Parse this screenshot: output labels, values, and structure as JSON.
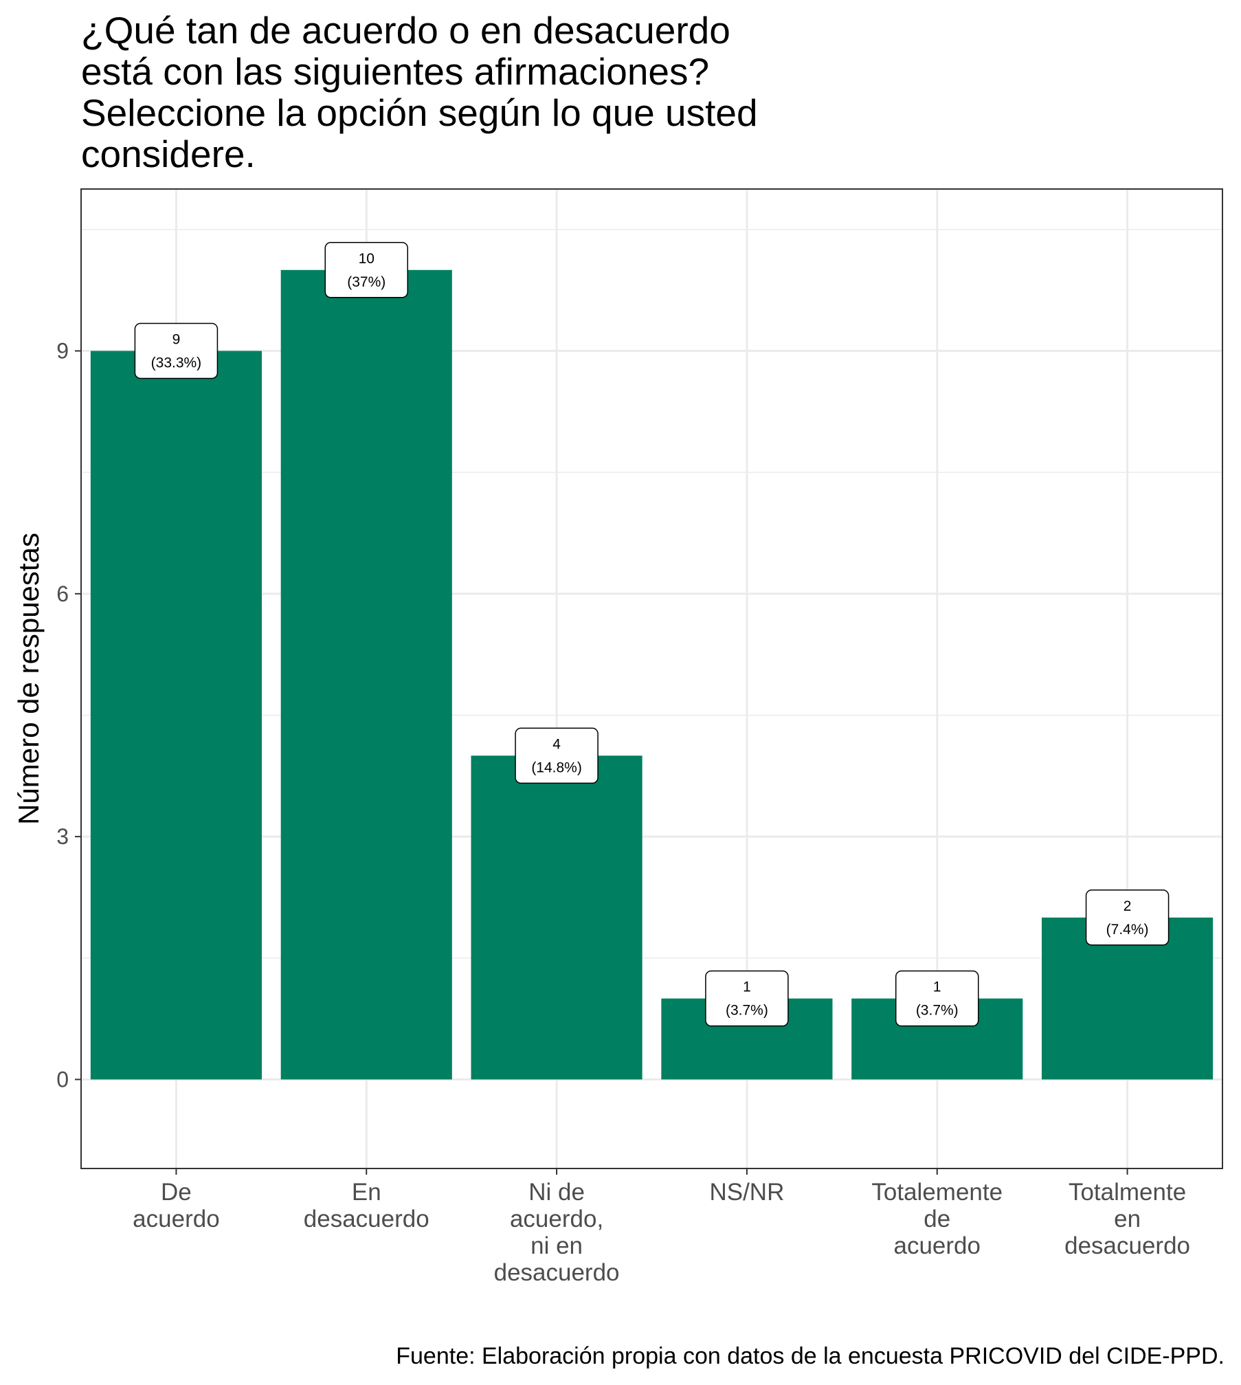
{
  "title_lines": [
    "¿Qué tan de acuerdo o en desacuerdo",
    "está con las siguientes afirmaciones?",
    "Seleccione la opción según lo que usted",
    "considere."
  ],
  "caption": "Fuente: Elaboración propia con datos de la encuesta PRICOVID del CIDE-PPD.",
  "colors": {
    "bar": "#008060",
    "grid": "#ebebeb",
    "border": "#333333"
  },
  "chart_data": {
    "type": "bar",
    "title": "¿Qué tan de acuerdo o en desacuerdo está con las siguientes afirmaciones? Seleccione la opción según lo que usted considere.",
    "xlabel": "",
    "ylabel": "Número de respuestas",
    "ylim": [
      -1.1,
      11.0
    ],
    "yticks": [
      0,
      3,
      6,
      9
    ],
    "grid": true,
    "categories": [
      [
        "De",
        "acuerdo"
      ],
      [
        "En",
        "desacuerdo"
      ],
      [
        "Ni de",
        "acuerdo,",
        "ni en",
        "desacuerdo"
      ],
      [
        "NS/NR"
      ],
      [
        "Totalemente",
        "de",
        "acuerdo"
      ],
      [
        "Totalmente",
        "en",
        "desacuerdo"
      ]
    ],
    "values": [
      9,
      10,
      4,
      1,
      1,
      2
    ],
    "labels": [
      [
        "9",
        "(33.3%)"
      ],
      [
        "10",
        "(37%)"
      ],
      [
        "4",
        "(14.8%)"
      ],
      [
        "1",
        "(3.7%)"
      ],
      [
        "1",
        "(3.7%)"
      ],
      [
        "2",
        "(7.4%)"
      ]
    ]
  }
}
